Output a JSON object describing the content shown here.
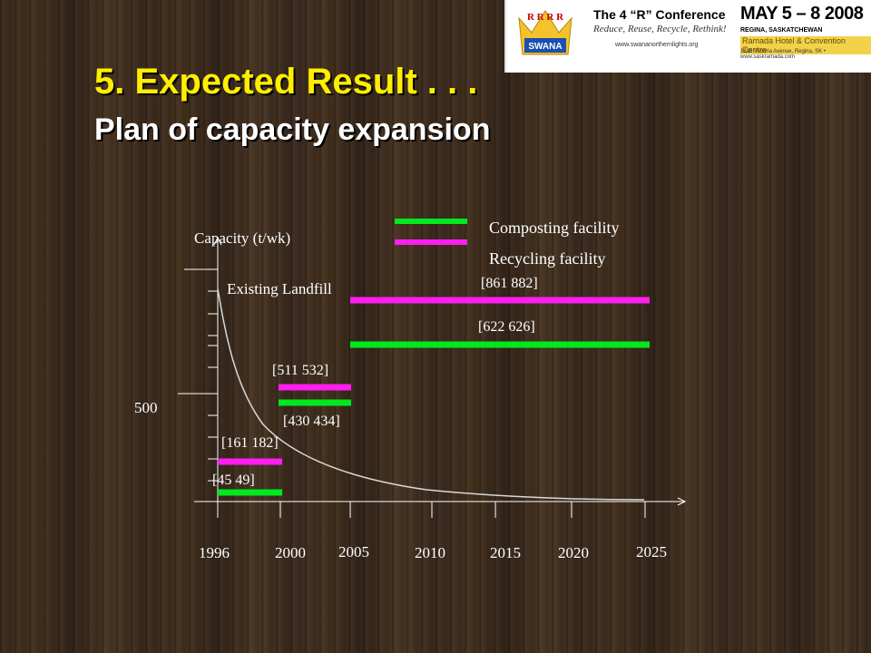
{
  "slide": {
    "title": "5. Expected Result . . .",
    "subtitle": "Plan of capacity expansion"
  },
  "banner": {
    "conference": "The 4 “R” Conference",
    "tagline": "Reduce, Reuse, Recycle, Rethink!",
    "url": "www.swananorthernlights.org",
    "date": "MAY 5 – 8 2008",
    "city": "REGINA, SASKATCHEWAN",
    "venue": "Ramada Hotel & Convention Centre",
    "venue_address": "1818 Victoria Avenue, Regina, SK • www.saskramada.com",
    "logo_text": "SWANA",
    "logo_letters": "R R R R",
    "colors": {
      "background": "#ffffff",
      "date_accent": "#f2d24a"
    }
  },
  "chart_data": {
    "type": "bar",
    "ylabel": "Capacity (t/wk)",
    "x_ticks": [
      "1996",
      "2000",
      "2005",
      "2010",
      "2015",
      "2020",
      "2025"
    ],
    "y_tick_label": "500",
    "legend": [
      {
        "name": "Composting facility",
        "color": "#00e81e"
      },
      {
        "name": "Recycling facility",
        "color": "#ff1ef0"
      }
    ],
    "curve_label": "Existing Landfill",
    "series": [
      {
        "name": "Composting facility",
        "color": "#00e81e",
        "segments": [
          {
            "x_start": 1996,
            "x_end": 2000,
            "label": "[45  49]"
          },
          {
            "x_start": 2000,
            "x_end": 2005,
            "label": "[430 434]"
          },
          {
            "x_start": 2005,
            "x_end": 2025,
            "label": "[622 626]"
          }
        ]
      },
      {
        "name": "Recycling facility",
        "color": "#ff1ef0",
        "segments": [
          {
            "x_start": 1996,
            "x_end": 2000,
            "label": "[161 182]"
          },
          {
            "x_start": 2000,
            "x_end": 2005,
            "label": "[511 532]"
          },
          {
            "x_start": 2005,
            "x_end": 2025,
            "label": "[861 882]"
          }
        ]
      }
    ]
  }
}
